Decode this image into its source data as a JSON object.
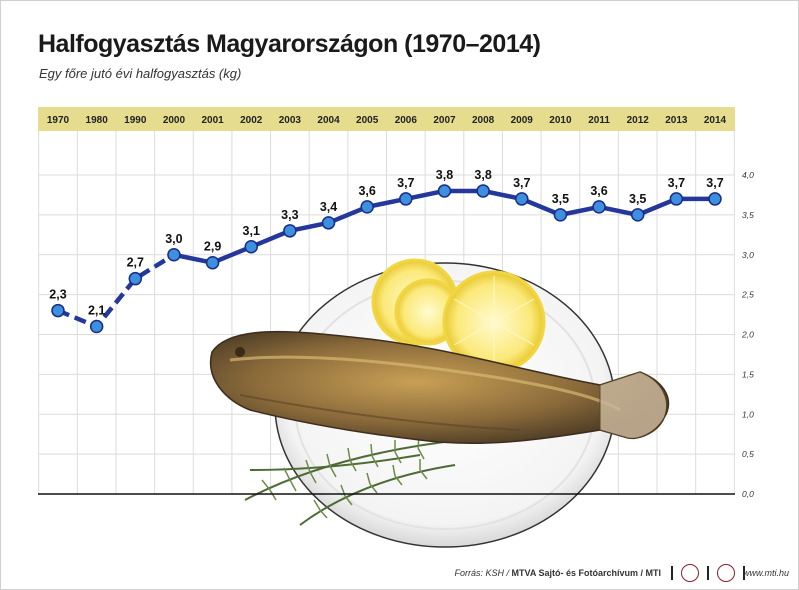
{
  "header": {
    "title": "Halfogyasztás Magyarországon (1970–2014)",
    "subtitle": "Egy főre jutó évi halfogyasztás (kg)"
  },
  "footer": {
    "source_prefix": "Forrás: KSH /",
    "source_bold": "MTVA Sajtó- és Fotóarchívum / MTI",
    "website": "www.mti.hu",
    "logo1": "mti-logo-icon",
    "logo2": "mtva-logo-icon"
  },
  "colors": {
    "header_band": "#e6dc8e",
    "line": "#24379a",
    "marker": "#3d8fe0",
    "grid": "#dcdcdc"
  },
  "chart_data": {
    "type": "line",
    "title": "Halfogyasztás Magyarországon (1970–2014)",
    "subtitle": "Egy főre jutó évi halfogyasztás (kg)",
    "categories": [
      "1970",
      "1980",
      "1990",
      "2000",
      "2001",
      "2002",
      "2003",
      "2004",
      "2005",
      "2006",
      "2007",
      "2008",
      "2009",
      "2010",
      "2011",
      "2012",
      "2013",
      "2014"
    ],
    "series": [
      {
        "values": [
          2.3,
          2.1,
          2.7,
          3.0,
          2.9,
          3.1,
          3.3,
          3.4,
          3.6,
          3.7,
          3.8,
          3.8,
          3.7,
          3.5,
          3.6,
          3.5,
          3.7,
          3.7
        ]
      }
    ],
    "data_labels": [
      "2,3",
      "2,1",
      "2,7",
      "3,0",
      "2,9",
      "3,1",
      "3,3",
      "3,4",
      "3,6",
      "3,7",
      "3,8",
      "3,8",
      "3,7",
      "3,5",
      "3,6",
      "3,5",
      "3,7",
      "3,7"
    ],
    "dashed_segments_through": "2000",
    "y_ticks": [
      "0,0",
      "0,5",
      "1,0",
      "1,5",
      "2,0",
      "2,5",
      "3,0",
      "3,5",
      "4,0"
    ],
    "ylim": [
      0,
      4.0
    ],
    "y_axis_position": "right",
    "grid": true,
    "background_image": "fried-fish-on-plate-with-lemon-and-rosemary"
  }
}
